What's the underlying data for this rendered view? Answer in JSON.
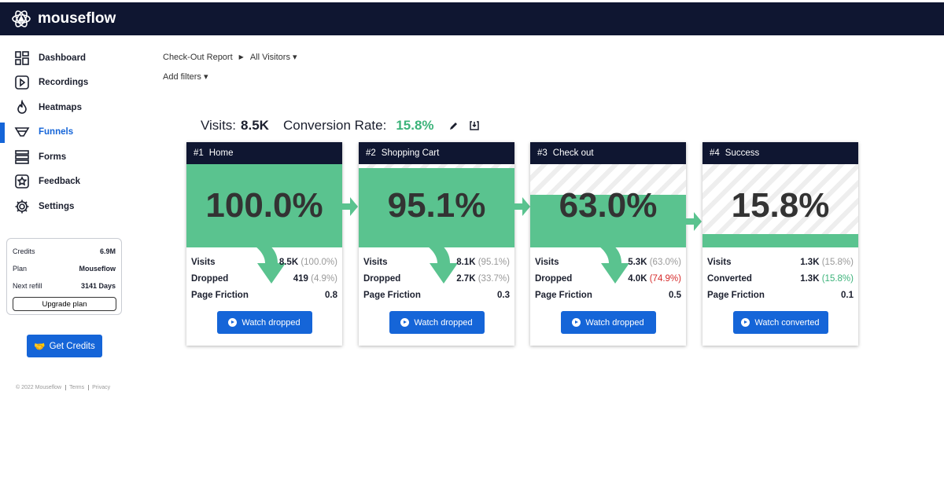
{
  "app": {
    "name": "mouseflow"
  },
  "sidebar": {
    "items": [
      {
        "label": "Dashboard",
        "icon": "dashboard-icon"
      },
      {
        "label": "Recordings",
        "icon": "play-icon"
      },
      {
        "label": "Heatmaps",
        "icon": "flame-icon"
      },
      {
        "label": "Funnels",
        "icon": "funnel-icon",
        "active": true
      },
      {
        "label": "Forms",
        "icon": "forms-icon"
      },
      {
        "label": "Feedback",
        "icon": "feedback-icon"
      },
      {
        "label": "Settings",
        "icon": "gear-icon"
      }
    ]
  },
  "credits": {
    "credits_label": "Credits",
    "credits_value": "6.9M",
    "plan_label": "Plan",
    "plan_value": "Mouseflow",
    "refill_label": "Next refill",
    "refill_value": "3141 Days",
    "upgrade": "Upgrade plan"
  },
  "get_credits": "Get Credits",
  "footer": {
    "copyright": "© 2022 Mouseflow",
    "terms": "Terms",
    "privacy": "Privacy"
  },
  "breadcrumb": {
    "report": "Check-Out Report",
    "segment": "All Visitors ▾"
  },
  "add_filters": "Add filters ▾",
  "summary": {
    "visits_label": "Visits:",
    "visits": "8.5K",
    "conv_label": "Conversion Rate:",
    "conv": "15.8%"
  },
  "colors": {
    "accent": "#1565d8",
    "green": "#5ac38f",
    "navy": "#0f1631"
  },
  "steps": [
    {
      "num": "#1",
      "name": "Home",
      "pct": "100.0%",
      "fill": 100,
      "r1k": "Visits",
      "r1v": "8.5K",
      "r1p": "(100.0%)",
      "r2k": "Dropped",
      "r2v": "419",
      "r2p": "(4.9%)",
      "r3k": "Page Friction",
      "r3v": "0.8",
      "button": "Watch dropped"
    },
    {
      "num": "#2",
      "name": "Shopping Cart",
      "pct": "95.1%",
      "fill": 95.1,
      "r1k": "Visits",
      "r1v": "8.1K",
      "r1p": "(95.1%)",
      "r2k": "Dropped",
      "r2v": "2.7K",
      "r2p": "(33.7%)",
      "r3k": "Page Friction",
      "r3v": "0.3",
      "button": "Watch dropped"
    },
    {
      "num": "#3",
      "name": "Check out",
      "pct": "63.0%",
      "fill": 63,
      "r1k": "Visits",
      "r1v": "5.3K",
      "r1p": "(63.0%)",
      "r2k": "Dropped",
      "r2v": "4.0K",
      "r2p": "(74.9%)",
      "r3k": "Page Friction",
      "r3v": "0.5",
      "button": "Watch dropped"
    },
    {
      "num": "#4",
      "name": "Success",
      "pct": "15.8%",
      "fill": 15.8,
      "r1k": "Visits",
      "r1v": "1.3K",
      "r1p": "(15.8%)",
      "r2k": "Converted",
      "r2v": "1.3K",
      "r2p": "(15.8%)",
      "r3k": "Page Friction",
      "r3v": "0.1",
      "button": "Watch converted"
    }
  ]
}
